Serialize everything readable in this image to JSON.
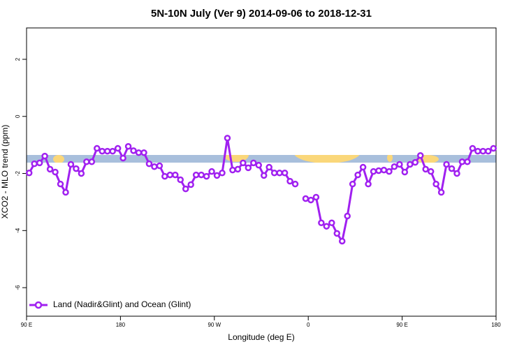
{
  "chart_data": {
    "type": "line",
    "title": "5N-10N July (Ver 9)   2014-09-06 to 2018-12-31",
    "xlabel": "Longitude (deg E)",
    "ylabel": "XCO2 - MLO trend (ppm)",
    "xlim": [
      90,
      540
    ],
    "ylim": [
      -7,
      3.1
    ],
    "xticks": [
      {
        "value": 90,
        "label": "90 E"
      },
      180,
      {
        "value": 270,
        "label": "90 W"
      },
      {
        "value": 360,
        "label": "0"
      },
      {
        "value": 450,
        "label": "90 E"
      },
      {
        "value": 540,
        "label": "180"
      }
    ],
    "yticks": [
      2,
      0,
      -2,
      -4,
      -6
    ],
    "grid": false,
    "legend": "bottom-left",
    "x": [
      92.5,
      97.5,
      102.5,
      107.5,
      112.5,
      117.5,
      122.5,
      127.5,
      132.5,
      137.5,
      142.5,
      147.5,
      152.5,
      157.5,
      162.5,
      167.5,
      172.5,
      177.5,
      182.5,
      187.5,
      192.5,
      197.5,
      202.5,
      207.5,
      212.5,
      217.5,
      222.5,
      227.5,
      232.5,
      237.5,
      242.5,
      247.5,
      252.5,
      257.5,
      262.5,
      267.5,
      272.5,
      277.5,
      282.5,
      287.5,
      292.5,
      297.5,
      302.5,
      307.5,
      312.5,
      317.5,
      322.5,
      327.5,
      332.5,
      337.5,
      342.5,
      347.5,
      352.5,
      357.5,
      362.5,
      367.5,
      372.5,
      377.5,
      382.5,
      387.5,
      392.5,
      397.5,
      402.5,
      407.5,
      412.5,
      417.5,
      422.5,
      427.5,
      432.5,
      437.5,
      442.5,
      447.5,
      452.5,
      457.5,
      462.5,
      467.5,
      472.5,
      477.5,
      482.5,
      487.5,
      492.5,
      497.5,
      502.5,
      507.5,
      512.5,
      517.5,
      522.5,
      527.5,
      532.5,
      537.5
    ],
    "series": [
      {
        "name": "Land (Nadir&Glint) and Ocean (Glint)",
        "color": "#a020f0",
        "values": [
          -1.98,
          -1.66,
          -1.63,
          -1.39,
          -1.85,
          -1.95,
          -2.37,
          -2.66,
          -1.68,
          -1.83,
          -2.0,
          -1.59,
          -1.59,
          -1.12,
          -1.22,
          -1.22,
          -1.22,
          -1.12,
          -1.46,
          -1.05,
          -1.2,
          -1.27,
          -1.27,
          -1.66,
          -1.76,
          -1.73,
          -2.1,
          -2.05,
          -2.05,
          -2.22,
          -2.54,
          -2.39,
          -2.05,
          -2.05,
          -2.1,
          -1.93,
          -2.07,
          -1.98,
          -0.76,
          -1.88,
          -1.85,
          -1.63,
          -1.8,
          -1.63,
          -1.71,
          -2.07,
          -1.78,
          -1.98,
          -1.98,
          -1.98,
          -2.27,
          -2.37,
          null,
          -2.88,
          -2.93,
          -2.83,
          -3.73,
          -3.85,
          -3.73,
          -4.1,
          -4.37,
          -3.49,
          -2.37,
          -2.05,
          -1.78,
          -2.37,
          -1.93,
          -1.9,
          -1.88,
          -1.93,
          -1.76,
          -1.68,
          -1.95,
          -1.68,
          -1.61,
          -1.37,
          -1.85,
          -1.93,
          -2.37,
          -2.66,
          -1.68,
          -1.83,
          -2.0,
          -1.59,
          -1.59,
          -1.12,
          -1.22,
          -1.22,
          -1.22,
          -1.12
        ]
      }
    ]
  }
}
